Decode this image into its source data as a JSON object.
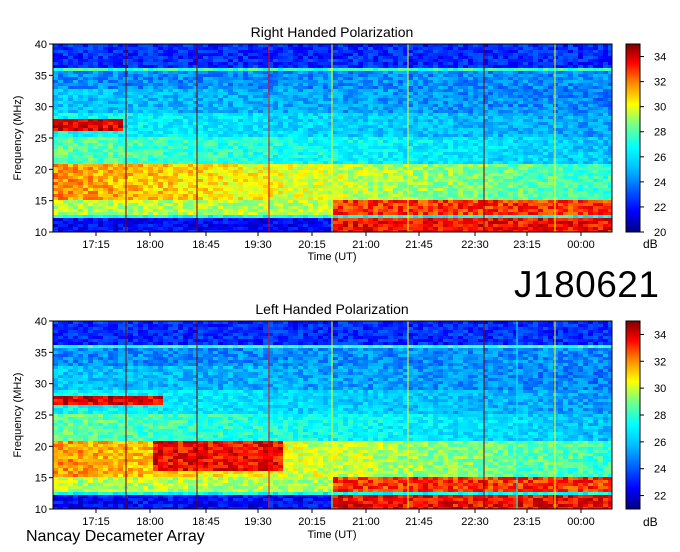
{
  "observation_id": "J180621",
  "footer": "Nancay Decameter Array",
  "chart_data": [
    {
      "type": "heatmap",
      "title": "Right Handed Polarization",
      "xlabel": "Time (UT)",
      "ylabel": "Frequency (MHz)",
      "x_ticks": [
        "17:15",
        "18:00",
        "18:45",
        "19:30",
        "20:15",
        "21:00",
        "21:45",
        "22:30",
        "23:15",
        "00:00"
      ],
      "y_ticks": [
        10,
        15,
        20,
        25,
        30,
        35,
        40
      ],
      "ylim": [
        10,
        40
      ],
      "colorbar": {
        "label": "dB",
        "ticks": [
          20,
          22,
          24,
          26,
          28,
          30,
          32,
          34
        ],
        "range": [
          20,
          35
        ]
      },
      "colormap": [
        "#00007f",
        "#0000ff",
        "#007fff",
        "#00ffff",
        "#7fff7f",
        "#ffff00",
        "#ff7f00",
        "#ff0000",
        "#7f0000"
      ]
    },
    {
      "type": "heatmap",
      "title": "Left Handed Polarization",
      "xlabel": "Time (UT)",
      "ylabel": "Frequency (MHz)",
      "x_ticks": [
        "17:15",
        "18:00",
        "18:45",
        "19:30",
        "20:15",
        "21:00",
        "21:45",
        "22:30",
        "23:15",
        "00:00"
      ],
      "y_ticks": [
        10,
        15,
        20,
        25,
        30,
        35,
        40
      ],
      "ylim": [
        10,
        40
      ],
      "colorbar": {
        "label": "dB",
        "ticks": [
          22,
          24,
          26,
          28,
          30,
          32,
          34
        ],
        "range": [
          21,
          35
        ]
      },
      "colormap": [
        "#00007f",
        "#0000ff",
        "#007fff",
        "#00ffff",
        "#7fff7f",
        "#ffff00",
        "#ff7f00",
        "#ff0000",
        "#7f0000"
      ]
    }
  ]
}
